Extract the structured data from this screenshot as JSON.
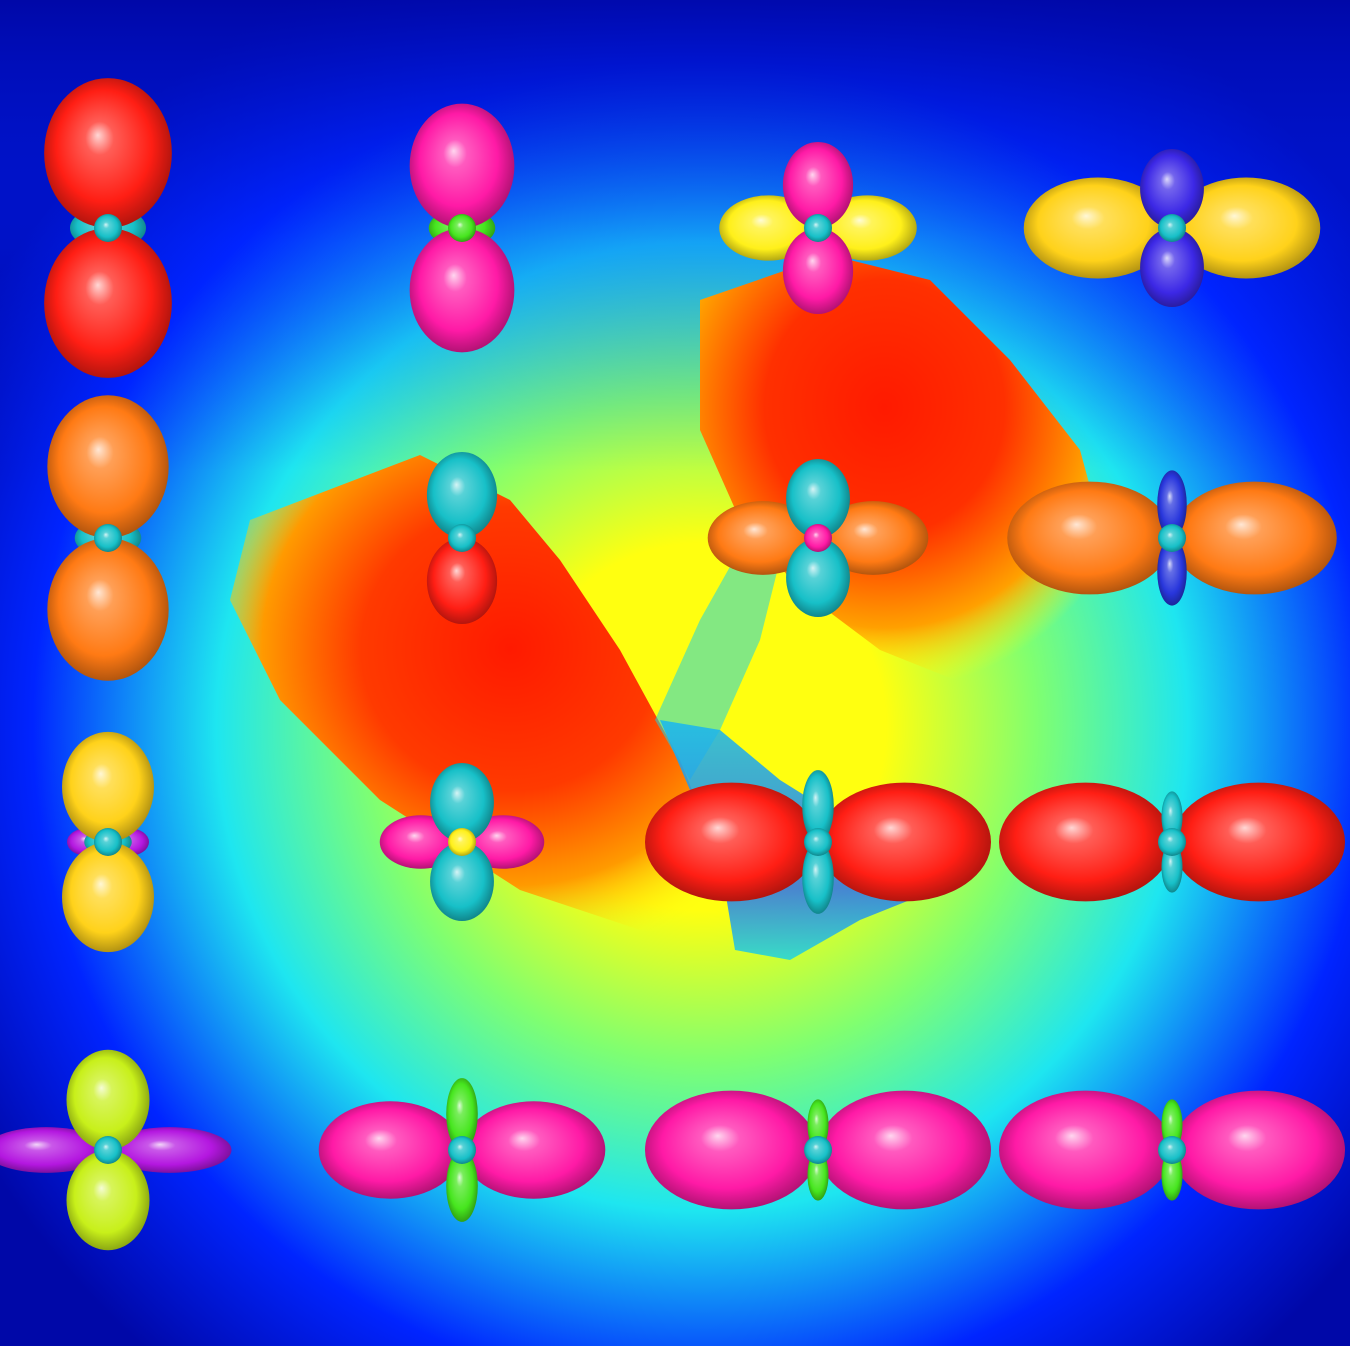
{
  "figure": {
    "background_field": {
      "colormap": "jet",
      "outer_color": "#0008a8",
      "edge_color": "#0024ff",
      "mid_color": "#1ee6f0",
      "low_color": "#80ff70",
      "high_color": "#ffff10",
      "peak_color": "#ff1a00"
    },
    "palette": {
      "red": "#ff1e14",
      "magenta": "#ff1aa6",
      "violet": "#b417e0",
      "orange": "#ff7a14",
      "gold": "#ffd21a",
      "yellow": "#fff01a",
      "lime": "#c8f01a",
      "green": "#46e61e",
      "cyan": "#17c0c8",
      "blue": "#3c28e6",
      "deep_blue": "#2836dc"
    },
    "glyph_grid": {
      "rows": 4,
      "cols": 4,
      "glyphs": [
        {
          "row": 0,
          "col": 0,
          "axial": 1.0,
          "equatorial": 0.0,
          "ring": 0.4,
          "axial_color": "red",
          "equatorial_color": "red",
          "ring_color": "cyan"
        },
        {
          "row": 0,
          "col": 1,
          "axial": 0.82,
          "equatorial": 0.0,
          "ring": 0.35,
          "axial_color": "magenta",
          "equatorial_color": "magenta",
          "ring_color": "green"
        },
        {
          "row": 0,
          "col": 2,
          "axial": 0.55,
          "equatorial": 0.55,
          "ring": 0.0,
          "axial_color": "magenta",
          "equatorial_color": "yellow",
          "ring_color": "cyan"
        },
        {
          "row": 0,
          "col": 3,
          "axial": 0.5,
          "equatorial": 0.85,
          "ring": 0.0,
          "axial_color": "blue",
          "equatorial_color": "gold",
          "ring_color": "cyan"
        },
        {
          "row": 1,
          "col": 0,
          "axial": 0.95,
          "equatorial": 0.0,
          "ring": 0.35,
          "axial_color": "orange",
          "equatorial_color": "orange",
          "ring_color": "cyan"
        },
        {
          "row": 1,
          "col": 1,
          "axial": 0.55,
          "equatorial": 0.0,
          "ring": 0.0,
          "axial_color": "cyan",
          "equatorial_color": "red",
          "ring_color": "cyan"
        },
        {
          "row": 1,
          "col": 2,
          "axial": 0.5,
          "equatorial": 0.62,
          "ring": 0.0,
          "axial_color": "cyan",
          "equatorial_color": "orange",
          "ring_color": "magenta"
        },
        {
          "row": 1,
          "col": 3,
          "axial": 0.42,
          "equatorial": 0.95,
          "ring": 0.0,
          "axial_color": "deep_blue",
          "equatorial_color": "orange",
          "ring_color": "cyan"
        },
        {
          "row": 2,
          "col": 0,
          "axial": 0.72,
          "equatorial": 0.2,
          "ring": 0.25,
          "axial_color": "gold",
          "equatorial_color": "violet",
          "ring_color": "cyan"
        },
        {
          "row": 2,
          "col": 1,
          "axial": 0.5,
          "equatorial": 0.45,
          "ring": 0.0,
          "axial_color": "cyan",
          "equatorial_color": "magenta",
          "ring_color": "yellow"
        },
        {
          "row": 2,
          "col": 2,
          "axial": 0.45,
          "equatorial": 1.0,
          "ring": 0.0,
          "axial_color": "cyan",
          "equatorial_color": "red",
          "ring_color": "cyan"
        },
        {
          "row": 2,
          "col": 3,
          "axial": 0.3,
          "equatorial": 1.0,
          "ring": 0.0,
          "axial_color": "cyan",
          "equatorial_color": "red",
          "ring_color": "cyan"
        },
        {
          "row": 3,
          "col": 0,
          "axial": 0.65,
          "equatorial": 0.7,
          "ring": 0.0,
          "axial_color": "lime",
          "equatorial_color": "violet",
          "ring_color": "cyan"
        },
        {
          "row": 3,
          "col": 1,
          "axial": 0.45,
          "equatorial": 0.82,
          "ring": 0.0,
          "axial_color": "green",
          "equatorial_color": "magenta",
          "ring_color": "cyan"
        },
        {
          "row": 3,
          "col": 2,
          "axial": 0.3,
          "equatorial": 1.0,
          "ring": 0.0,
          "axial_color": "green",
          "equatorial_color": "magenta",
          "ring_color": "cyan"
        },
        {
          "row": 3,
          "col": 3,
          "axial": 0.3,
          "equatorial": 1.0,
          "ring": 0.0,
          "axial_color": "green",
          "equatorial_color": "magenta",
          "ring_color": "cyan"
        }
      ]
    }
  }
}
